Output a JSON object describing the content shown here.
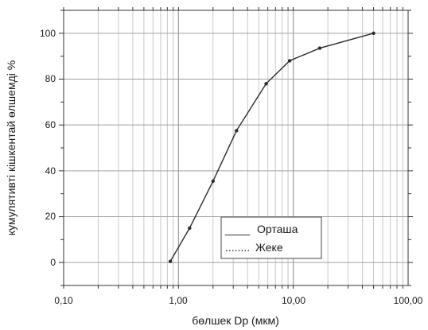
{
  "chart_data": {
    "type": "line",
    "xscale": "log",
    "xlim": [
      0.1,
      100
    ],
    "ylim": [
      -10,
      110
    ],
    "xlabel": "бөлшек Dp (мкм)",
    "ylabel": "кумулятивті кішкентай өлшемді %",
    "x_tick_labels": [
      "0,10",
      "1,00",
      "10,00",
      "100,00"
    ],
    "y_tick_labels": [
      "0",
      "20",
      "40",
      "60",
      "80",
      "100"
    ],
    "grid": true,
    "legend_position": "bottom-right",
    "legend": {
      "line1_prefix": "____",
      "line1_label": "Орташа",
      "line2_prefix": "........",
      "line2_label": "Жеке"
    },
    "series": [
      {
        "x": [
          0.85,
          1.25,
          2.0,
          3.2,
          5.8,
          9.3,
          17.0,
          50.0
        ],
        "y": [
          0.5,
          15,
          35.5,
          57.5,
          78,
          88,
          93.5,
          100
        ]
      }
    ]
  }
}
